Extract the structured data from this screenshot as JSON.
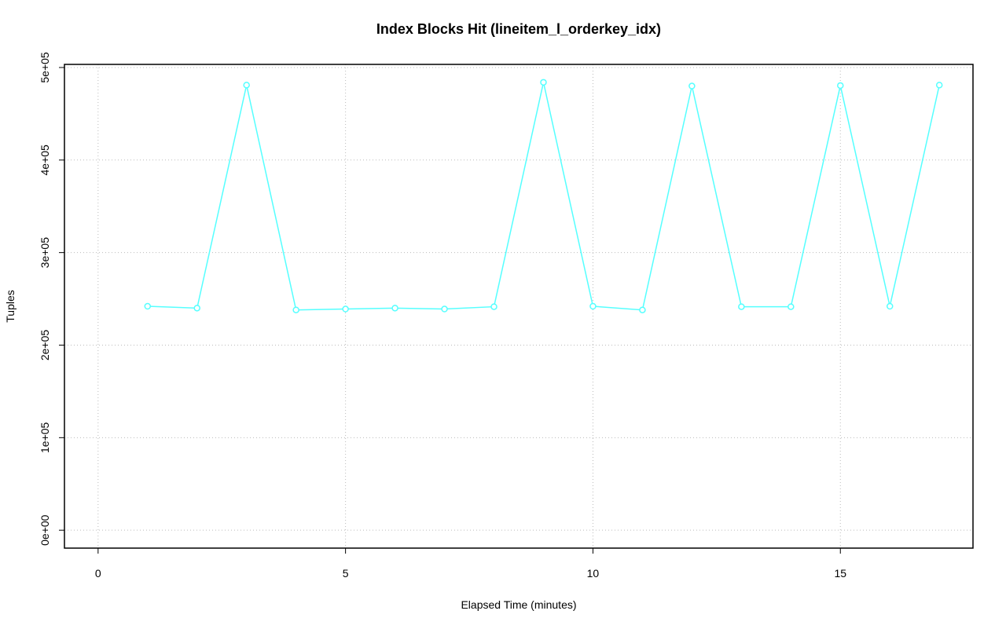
{
  "chart_data": {
    "type": "line",
    "title": "Index Blocks Hit (lineitem_l_orderkey_idx)",
    "x_label": "Elapsed Time (minutes)",
    "y_label": "Tuples",
    "x": [
      1,
      2,
      3,
      4,
      5,
      6,
      7,
      8,
      9,
      10,
      11,
      12,
      13,
      14,
      15,
      16,
      17
    ],
    "series": [
      {
        "color": "#55ffff",
        "values": [
          242000,
          240000,
          481000,
          238000,
          239000,
          240000,
          239000,
          241500,
          484000,
          242000,
          238000,
          480000,
          241500,
          241500,
          480500,
          242000,
          481000
        ]
      }
    ],
    "xlim": [
      -0.68,
      17.68
    ],
    "xticks": [
      0,
      5,
      10,
      15
    ],
    "ylim": [
      -19360,
      503360
    ],
    "yticks": [
      {
        "value": 0,
        "label": "0e+00"
      },
      {
        "value": 100000,
        "label": "1e+05"
      },
      {
        "value": 200000,
        "label": "2e+05"
      },
      {
        "value": 300000,
        "label": "3e+05"
      },
      {
        "value": 400000,
        "label": "4e+05"
      },
      {
        "value": 500000,
        "label": "5e+05"
      }
    ],
    "grid": true
  }
}
